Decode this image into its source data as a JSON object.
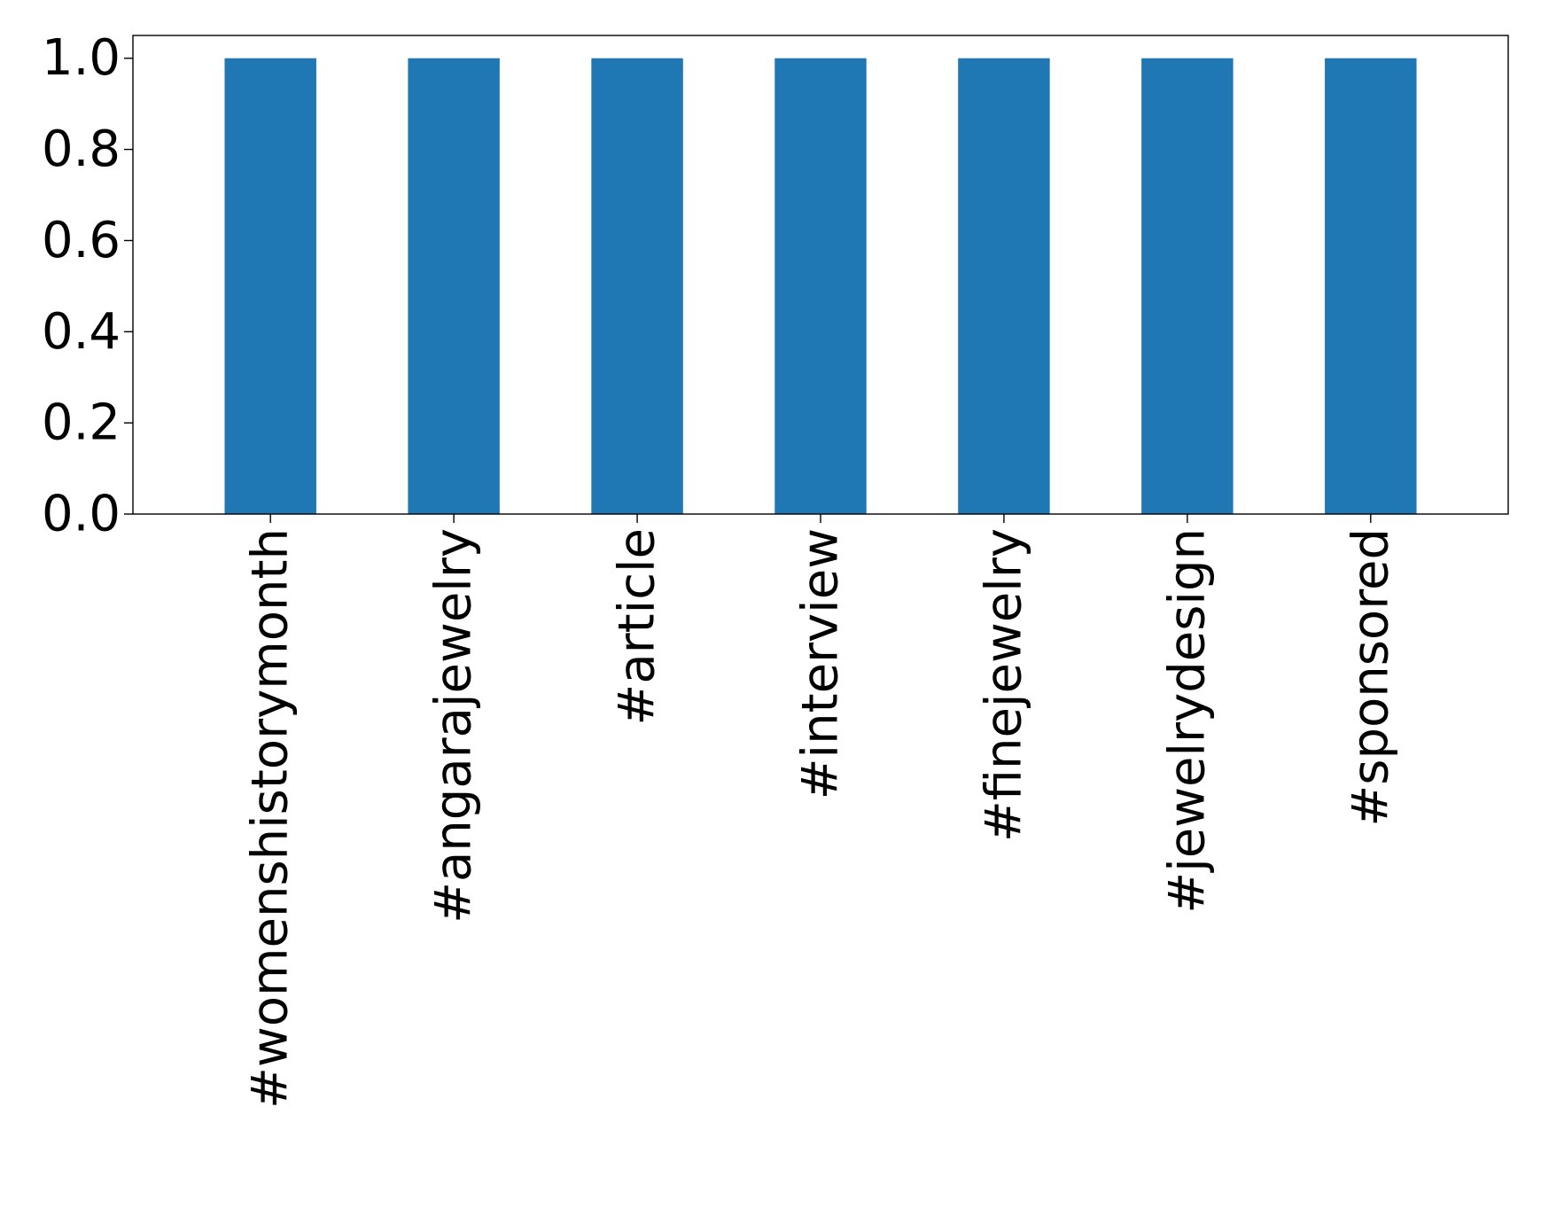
{
  "chart_data": {
    "type": "bar",
    "title": "",
    "xlabel": "",
    "ylabel": "",
    "categories": [
      "#womenshistorymonth",
      "#angarajewelry",
      "#article",
      "#interview",
      "#finejewelry",
      "#jewelrydesign",
      "#sponsored"
    ],
    "values": [
      1.0,
      1.0,
      1.0,
      1.0,
      1.0,
      1.0,
      1.0
    ],
    "ylim": [
      0,
      1.05
    ],
    "yticks": [
      0.0,
      0.2,
      0.4,
      0.6,
      0.8,
      1.0
    ],
    "ytick_labels": [
      "0.0",
      "0.2",
      "0.4",
      "0.6",
      "0.8",
      "1.0"
    ],
    "grid": false,
    "legend": "none",
    "bar_color": "#1f77b4"
  }
}
